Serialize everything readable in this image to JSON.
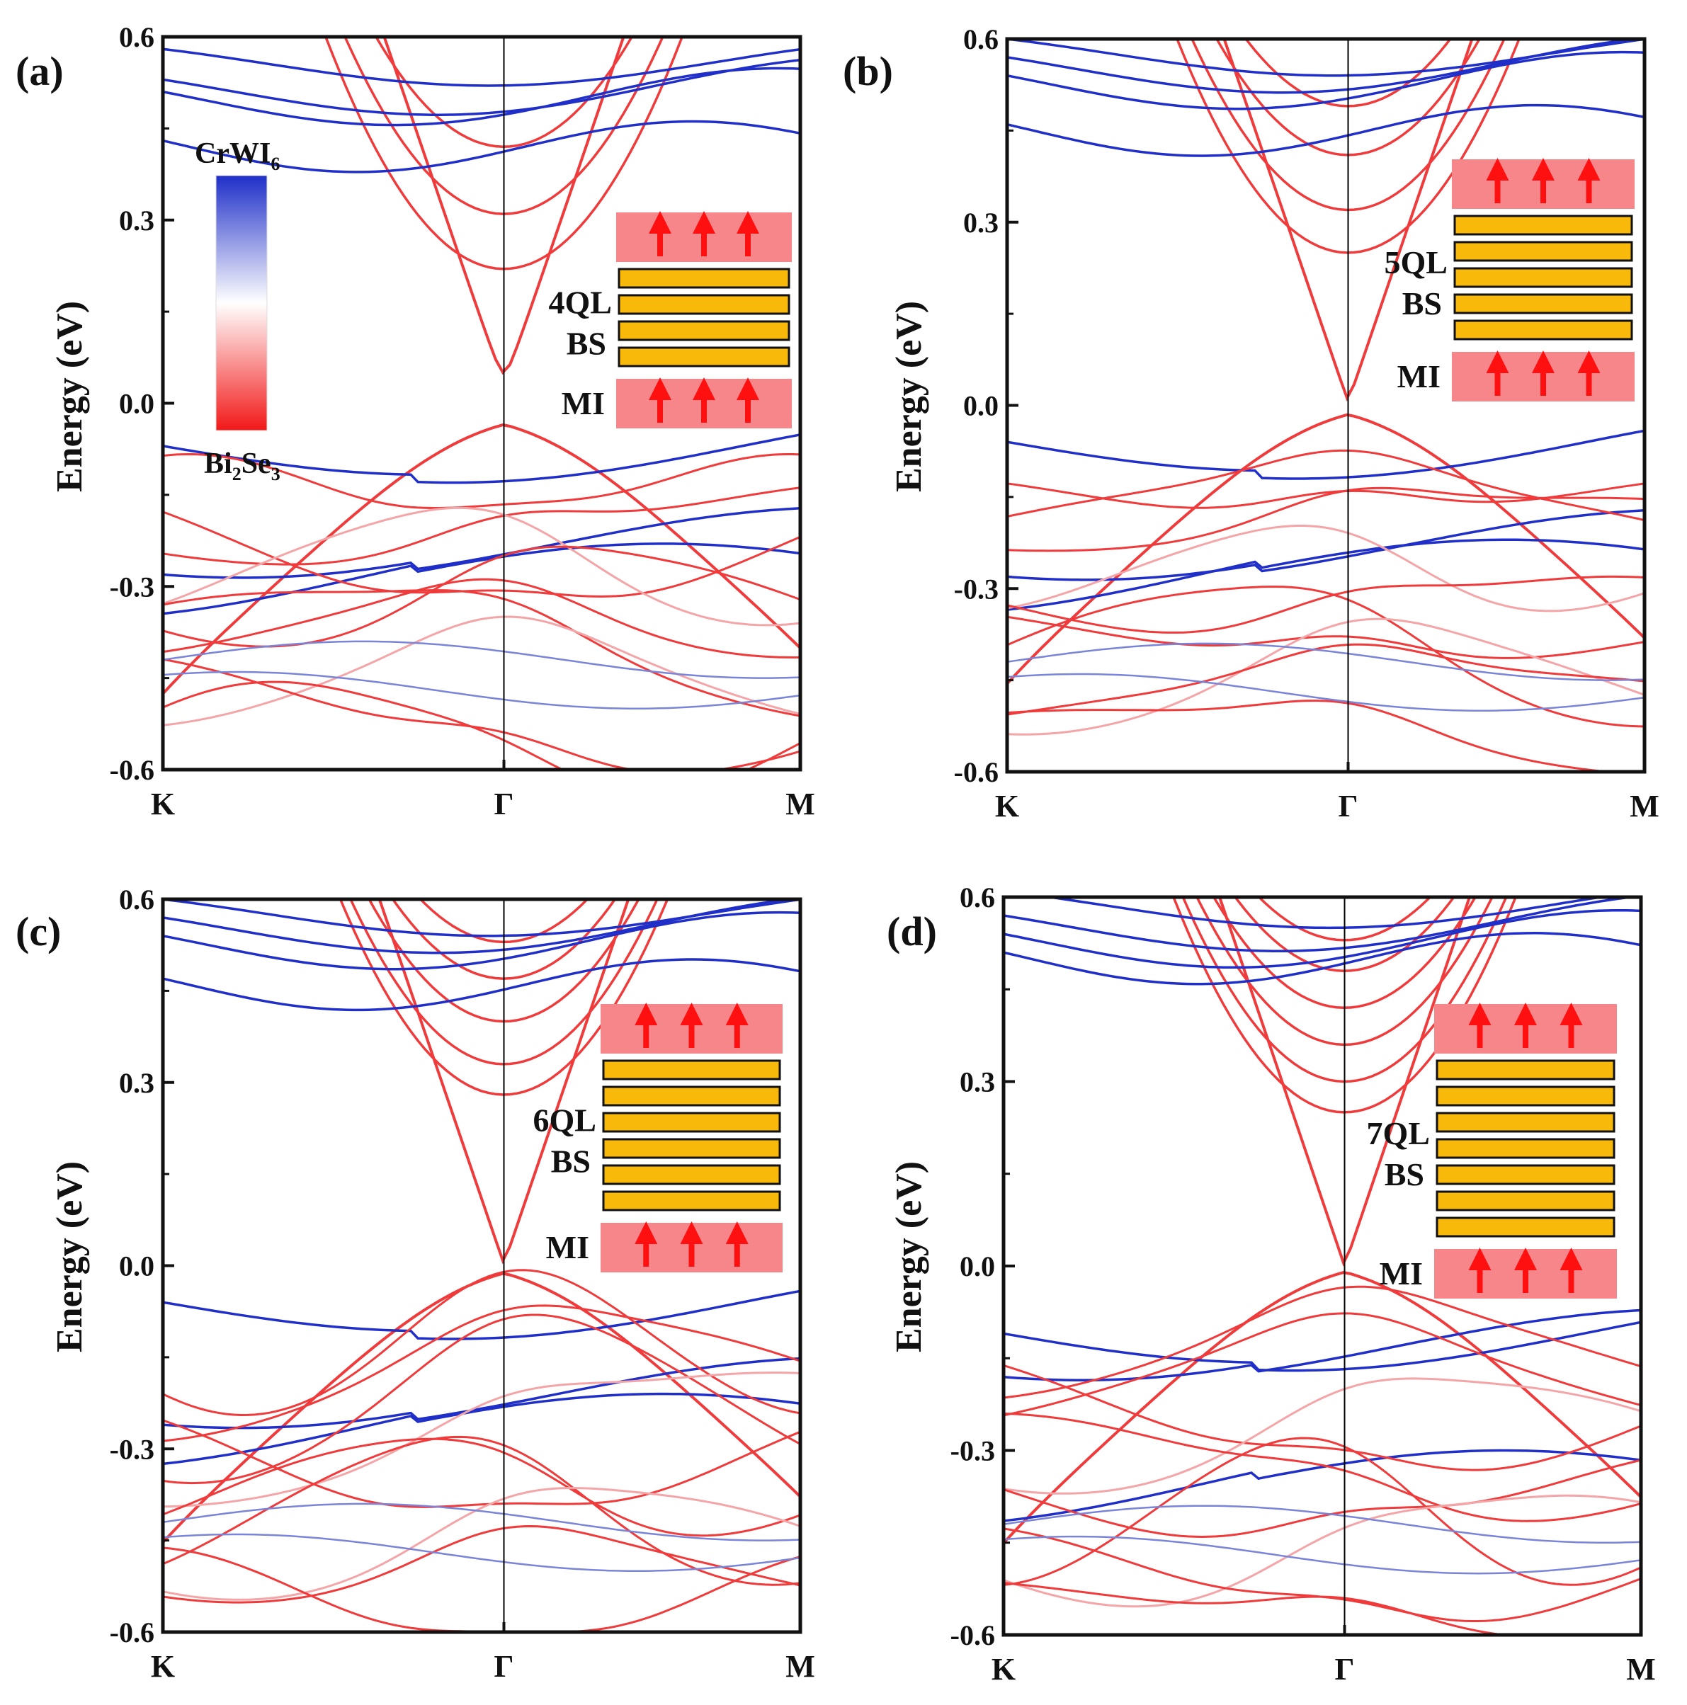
{
  "colors": {
    "red": "#ef3b3b",
    "blue": "#1f2fc8",
    "white": "#ffffff",
    "pink": "#f7868a",
    "gold": "#f9b90b",
    "arrow": "#ff1010"
  },
  "legend": {
    "top_label": "CrWI",
    "top_sub": "6",
    "bottom_label_1": "Bi",
    "bottom_sub_1": "2",
    "bottom_label_2": "Se",
    "bottom_sub_2": "3"
  },
  "chart_data": [
    {
      "type": "line",
      "panel": "(a)",
      "ylabel": "Energy (eV)",
      "ylim": [
        -0.6,
        0.6
      ],
      "yticks": [
        "0.6",
        "0.3",
        "0.0",
        "-0.3",
        "-0.6"
      ],
      "xticks": [
        "K",
        "Γ",
        "M"
      ],
      "inset": {
        "layers": 4,
        "label1": "4QL",
        "label2": "BS",
        "label3": "MI"
      },
      "gap_eV": 0.05,
      "cond_minima": [
        0.22,
        0.31,
        0.42
      ],
      "blue_top": [
        0.57,
        0.52,
        0.5,
        0.42
      ],
      "blue_bottom": [
        -0.07,
        -0.23,
        -0.29
      ]
    },
    {
      "type": "line",
      "panel": "(b)",
      "ylabel": "Energy (eV)",
      "ylim": [
        -0.6,
        0.6
      ],
      "yticks": [
        "0.6",
        "0.3",
        "0.0",
        "-0.3",
        "-0.6"
      ],
      "xticks": [
        "K",
        "Γ",
        "M"
      ],
      "inset": {
        "layers": 5,
        "label1": "5QL",
        "label2": "BS",
        "label3": "MI"
      },
      "gap_eV": 0.01,
      "cond_minima": [
        0.25,
        0.32,
        0.41,
        0.49
      ],
      "blue_top": [
        0.59,
        0.56,
        0.53,
        0.45
      ],
      "blue_bottom": [
        -0.06,
        -0.23,
        -0.28
      ]
    },
    {
      "type": "line",
      "panel": "(c)",
      "ylabel": "Energy (eV)",
      "ylim": [
        -0.6,
        0.6
      ],
      "yticks": [
        "0.6",
        "0.3",
        "0.0",
        "-0.3",
        "-0.6"
      ],
      "xticks": [
        "K",
        "Γ",
        "M"
      ],
      "inset": {
        "layers": 6,
        "label1": "6QL",
        "label2": "BS",
        "label3": "MI"
      },
      "gap_eV": 0.005,
      "cond_minima": [
        0.28,
        0.33,
        0.4,
        0.47,
        0.53
      ],
      "blue_top": [
        0.59,
        0.56,
        0.53,
        0.46
      ],
      "blue_bottom": [
        -0.06,
        -0.21,
        -0.27
      ]
    },
    {
      "type": "line",
      "panel": "(d)",
      "ylabel": "Energy (eV)",
      "ylim": [
        -0.6,
        0.6
      ],
      "yticks": [
        "0.6",
        "0.3",
        "0.0",
        "-0.3",
        "-0.6"
      ],
      "xticks": [
        "K",
        "Γ",
        "M"
      ],
      "inset": {
        "layers": 7,
        "label1": "7QL",
        "label2": "BS",
        "label3": "MI"
      },
      "gap_eV": 0.0,
      "cond_minima": [
        0.25,
        0.3,
        0.36,
        0.42,
        0.48,
        0.53
      ],
      "blue_top": [
        0.6,
        0.56,
        0.53,
        0.5
      ],
      "blue_bottom": [
        -0.11,
        -0.13,
        -0.36
      ]
    }
  ]
}
